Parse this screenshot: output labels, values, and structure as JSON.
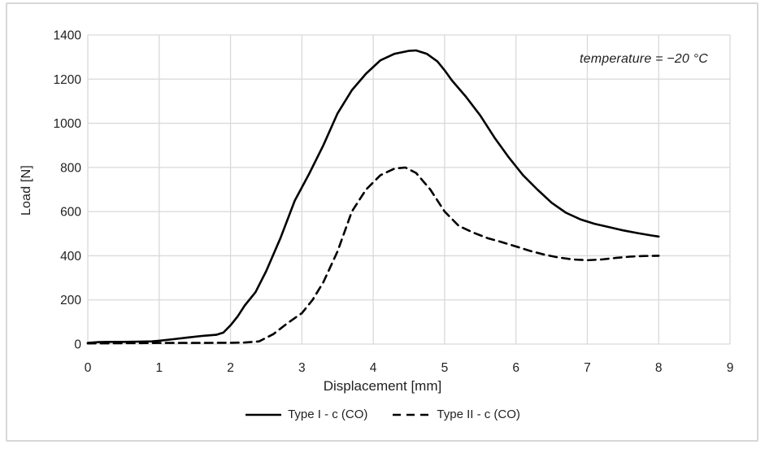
{
  "colors": {
    "curve": "#000000",
    "gridline": "#d9d9d9",
    "frame_border": "#d7d7d7",
    "text": "#1f1f1f",
    "background": "#ffffff"
  },
  "chart_data": {
    "type": "line",
    "title": "",
    "xlabel": "Displacement [mm]",
    "ylabel": "Load [N]",
    "annotation": "temperature = −20 °C",
    "xlim": [
      0,
      9
    ],
    "ylim": [
      0,
      1400
    ],
    "xticks": [
      "0",
      "1",
      "2",
      "3",
      "4",
      "5",
      "6",
      "7",
      "8",
      "9"
    ],
    "yticks": [
      "0",
      "200",
      "400",
      "600",
      "800",
      "1000",
      "1200",
      "1400"
    ],
    "grid": true,
    "legend_position": "bottom",
    "series": [
      {
        "name": "Type I - c (CO)",
        "line_style": "solid",
        "color": "#000000",
        "points": [
          [
            0,
            5
          ],
          [
            0.15,
            9
          ],
          [
            0.3,
            10
          ],
          [
            0.5,
            10
          ],
          [
            0.7,
            11
          ],
          [
            0.9,
            12
          ],
          [
            1.0,
            15
          ],
          [
            1.2,
            22
          ],
          [
            1.4,
            30
          ],
          [
            1.6,
            37
          ],
          [
            1.8,
            42
          ],
          [
            1.9,
            52
          ],
          [
            2.0,
            85
          ],
          [
            2.1,
            125
          ],
          [
            2.2,
            175
          ],
          [
            2.35,
            235
          ],
          [
            2.5,
            330
          ],
          [
            2.7,
            480
          ],
          [
            2.9,
            650
          ],
          [
            3.1,
            770
          ],
          [
            3.3,
            900
          ],
          [
            3.5,
            1045
          ],
          [
            3.7,
            1150
          ],
          [
            3.9,
            1225
          ],
          [
            4.1,
            1285
          ],
          [
            4.3,
            1315
          ],
          [
            4.5,
            1328
          ],
          [
            4.6,
            1330
          ],
          [
            4.75,
            1315
          ],
          [
            4.9,
            1280
          ],
          [
            5.0,
            1240
          ],
          [
            5.1,
            1195
          ],
          [
            5.3,
            1120
          ],
          [
            5.5,
            1035
          ],
          [
            5.7,
            935
          ],
          [
            5.9,
            845
          ],
          [
            6.1,
            765
          ],
          [
            6.3,
            700
          ],
          [
            6.5,
            640
          ],
          [
            6.7,
            595
          ],
          [
            6.9,
            565
          ],
          [
            7.1,
            545
          ],
          [
            7.3,
            530
          ],
          [
            7.5,
            515
          ],
          [
            7.7,
            503
          ],
          [
            7.9,
            492
          ],
          [
            8.0,
            487
          ]
        ]
      },
      {
        "name": "Type II - c (CO)",
        "line_style": "dashed",
        "color": "#000000",
        "points": [
          [
            0,
            3
          ],
          [
            0.5,
            4
          ],
          [
            1.0,
            5
          ],
          [
            1.5,
            5
          ],
          [
            2.0,
            6
          ],
          [
            2.2,
            7
          ],
          [
            2.4,
            12
          ],
          [
            2.6,
            45
          ],
          [
            2.8,
            95
          ],
          [
            3.0,
            140
          ],
          [
            3.15,
            200
          ],
          [
            3.3,
            280
          ],
          [
            3.5,
            420
          ],
          [
            3.7,
            600
          ],
          [
            3.9,
            700
          ],
          [
            4.1,
            765
          ],
          [
            4.3,
            795
          ],
          [
            4.45,
            800
          ],
          [
            4.6,
            775
          ],
          [
            4.8,
            700
          ],
          [
            5.0,
            600
          ],
          [
            5.2,
            535
          ],
          [
            5.4,
            505
          ],
          [
            5.6,
            480
          ],
          [
            5.8,
            462
          ],
          [
            6.0,
            442
          ],
          [
            6.2,
            422
          ],
          [
            6.4,
            405
          ],
          [
            6.6,
            392
          ],
          [
            6.8,
            383
          ],
          [
            7.0,
            380
          ],
          [
            7.2,
            383
          ],
          [
            7.4,
            390
          ],
          [
            7.6,
            396
          ],
          [
            7.8,
            399
          ],
          [
            8.0,
            400
          ]
        ]
      }
    ]
  }
}
